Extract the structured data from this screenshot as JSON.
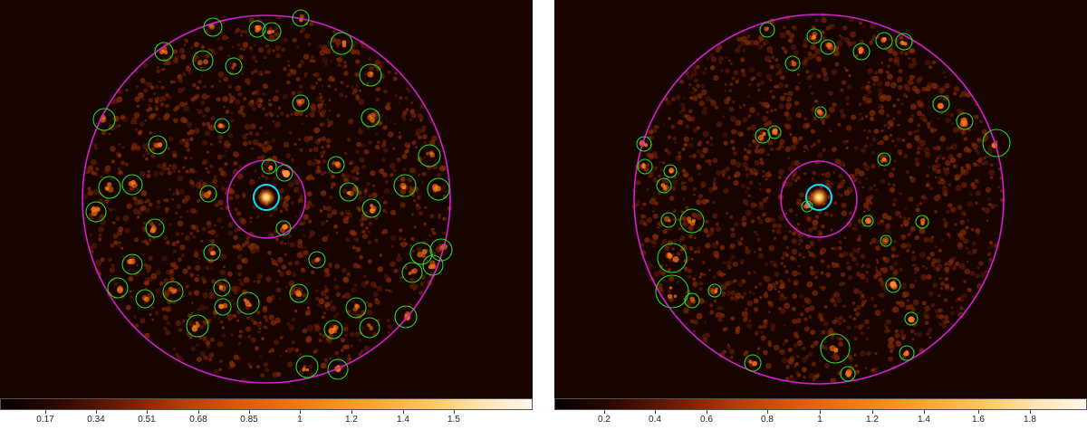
{
  "panels": [
    {
      "id": "left",
      "colorbar": {
        "ticks": [
          "0.17",
          "0.34",
          "0.51",
          "0.68",
          "0.85",
          "1",
          "1.2",
          "1.4",
          "1.5"
        ],
        "gradient": [
          "#050000",
          "#6a1a02",
          "#e35a08",
          "#faa225",
          "#fff8ee"
        ]
      }
    },
    {
      "id": "right",
      "colorbar": {
        "ticks": [
          "0.2",
          "0.4",
          "0.6",
          "0.8",
          "1",
          "1.2",
          "1.4",
          "1.6",
          "1.8"
        ],
        "gradient": [
          "#050000",
          "#6a1a02",
          "#e35a08",
          "#faa225",
          "#fff8ee"
        ]
      }
    }
  ],
  "colors": {
    "background": "#170300",
    "outer_region": "#d21fd2",
    "inner_region": "#d21fd2",
    "target_circle": "#00e1ff",
    "source_circles": "#22dd22",
    "noise_dots": "#8a2d06",
    "source_glow": "#ff7a1a"
  }
}
